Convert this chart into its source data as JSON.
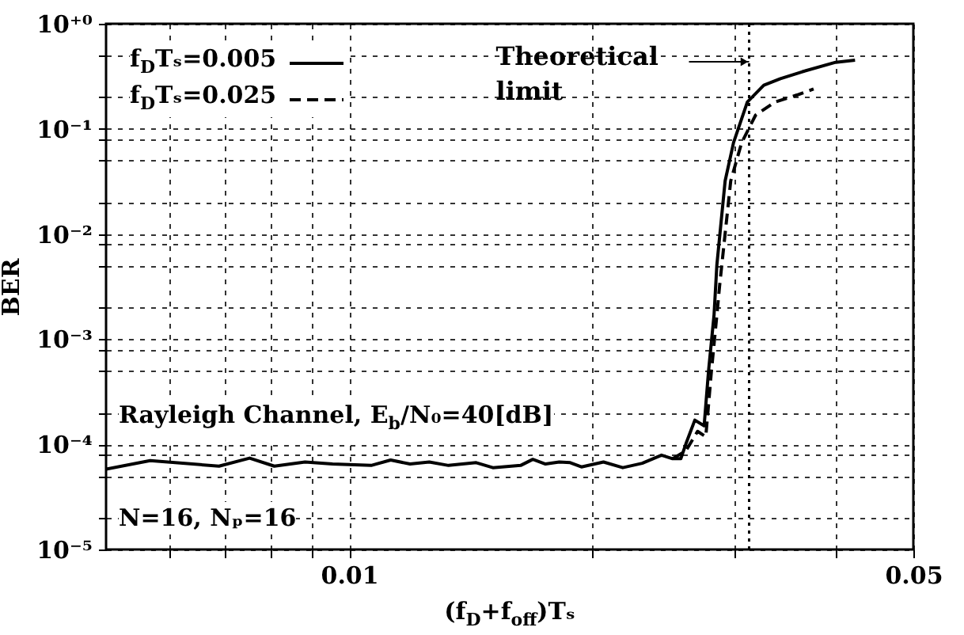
{
  "chart_data": {
    "type": "line",
    "xlabel": "(f$_{D}$+f$_{off}$)Tₛ",
    "ylabel": "BER",
    "log": "xy",
    "grid": true,
    "legend": "top left",
    "xlim": [
      0.005,
      0.05
    ],
    "xticks": [
      {
        "value": 0.006,
        "label": null
      },
      {
        "value": 0.007,
        "label": null
      },
      {
        "value": 0.008,
        "label": null
      },
      {
        "value": 0.009,
        "label": null
      },
      0.01,
      {
        "value": 0.02,
        "label": null
      },
      {
        "value": 0.03,
        "label": null
      },
      {
        "value": 0.04,
        "label": null
      },
      0.05
    ],
    "ylim": [
      1e-05,
      1
    ],
    "yticks": [
      {
        "value": 1,
        "label": "10⁺⁰"
      },
      {
        "value": 0.5,
        "label": null
      },
      {
        "value": 0.2,
        "label": null
      },
      {
        "value": 0.1,
        "label": "10⁻¹"
      },
      {
        "value": 0.08,
        "label": null
      },
      {
        "value": 0.05,
        "label": null
      },
      {
        "value": 0.02,
        "label": null
      },
      {
        "value": 0.01,
        "label": "10⁻²"
      },
      {
        "value": 0.008,
        "label": null
      },
      {
        "value": 0.005,
        "label": null
      },
      {
        "value": 0.002,
        "label": null
      },
      {
        "value": 0.001,
        "label": "10⁻³"
      },
      {
        "value": 0.0008,
        "label": null
      },
      {
        "value": 0.0005,
        "label": null
      },
      {
        "value": 0.0002,
        "label": null
      },
      {
        "value": 0.0001,
        "label": "10⁻⁴"
      },
      {
        "value": 8e-05,
        "label": null
      },
      {
        "value": 5e-05,
        "label": null
      },
      {
        "value": 2e-05,
        "label": null
      },
      {
        "value": 1e-05,
        "label": "10⁻⁵"
      }
    ],
    "series": [
      {
        "name": "f$_{D}$Tₛ=0.005",
        "color": "#000000",
        "line_style": "solid",
        "x": [
          0.005,
          0.00567,
          0.0069,
          0.00753,
          0.00808,
          0.00882,
          0.00954,
          0.01065,
          0.01126,
          0.0119,
          0.01257,
          0.01328,
          0.01437,
          0.01507,
          0.01631,
          0.01689,
          0.01751,
          0.01821,
          0.01879,
          0.0194,
          0.02066,
          0.02183,
          0.02307,
          0.02438,
          0.02516,
          0.02576,
          0.02617,
          0.02681,
          0.02753,
          0.02788,
          0.02832,
          0.02855,
          0.02923,
          0.02994,
          0.03114,
          0.03264,
          0.03422,
          0.03644,
          0.04006,
          0.04234
        ],
        "values": [
          5.8e-05,
          7e-05,
          6.2e-05,
          7.4e-05,
          6.2e-05,
          6.8e-05,
          6.5e-05,
          6.3e-05,
          7.1e-05,
          6.5e-05,
          6.8e-05,
          6.3e-05,
          6.7e-05,
          6e-05,
          6.3e-05,
          7.2e-05,
          6.5e-05,
          6.8e-05,
          6.7e-05,
          6.1e-05,
          6.8e-05,
          6e-05,
          6.6e-05,
          7.9e-05,
          7.3e-05,
          7.3e-05,
          0.000104,
          0.00017,
          0.00015,
          0.0005,
          0.0017,
          0.0051,
          0.032,
          0.074,
          0.18,
          0.26,
          0.3,
          0.35,
          0.43,
          0.45
        ]
      },
      {
        "name": "f$_{D}$Tₛ=0.025",
        "color": "#000000",
        "line_style": "dashed",
        "x": [
          0.02516,
          0.02614,
          0.02702,
          0.02766,
          0.02811,
          0.02855,
          0.02877,
          0.0297,
          0.03064,
          0.03188,
          0.03368,
          0.03587,
          0.03762
        ],
        "values": [
          7.3e-05,
          8.7e-05,
          0.000133,
          0.000118,
          0.0005,
          0.0017,
          0.0032,
          0.032,
          0.074,
          0.135,
          0.18,
          0.21,
          0.24
        ]
      }
    ],
    "ref_lines": [
      {
        "axis": "x",
        "value": 0.0313,
        "label": "Theoretical limit",
        "line_style": "dotted"
      }
    ],
    "annotations": [
      "Rayleigh Channel, E$_{b}$/N₀=40[dB]",
      "N=16, Nₚ=16"
    ]
  }
}
